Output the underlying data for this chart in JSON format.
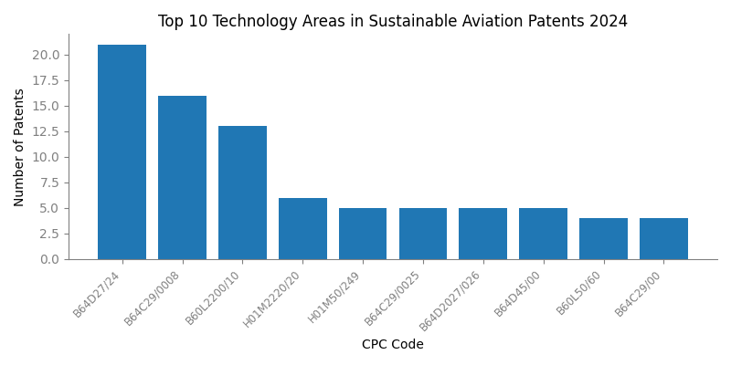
{
  "title": "Top 10 Technology Areas in Sustainable Aviation Patents 2024",
  "xlabel": "CPC Code",
  "ylabel": "Number of Patents",
  "categories": [
    "B64D27/24",
    "B64C29/0008",
    "B60L2200/10",
    "H01M2220/20",
    "H01M50/249",
    "B64C29/0025",
    "B64D2027/026",
    "B64D45/00",
    "B60L50/60",
    "B64C29/00"
  ],
  "values": [
    21,
    16,
    13,
    6,
    5,
    5,
    5,
    5,
    4,
    4
  ],
  "bar_color": "#2077b4",
  "ylim": [
    0,
    22
  ],
  "yticks": [
    0.0,
    2.5,
    5.0,
    7.5,
    10.0,
    12.5,
    15.0,
    17.5,
    20.0
  ],
  "title_fontsize": 12,
  "label_fontsize": 10,
  "tick_fontsize": 8.5,
  "figsize": [
    8.0,
    4.0
  ],
  "dpi": 100
}
